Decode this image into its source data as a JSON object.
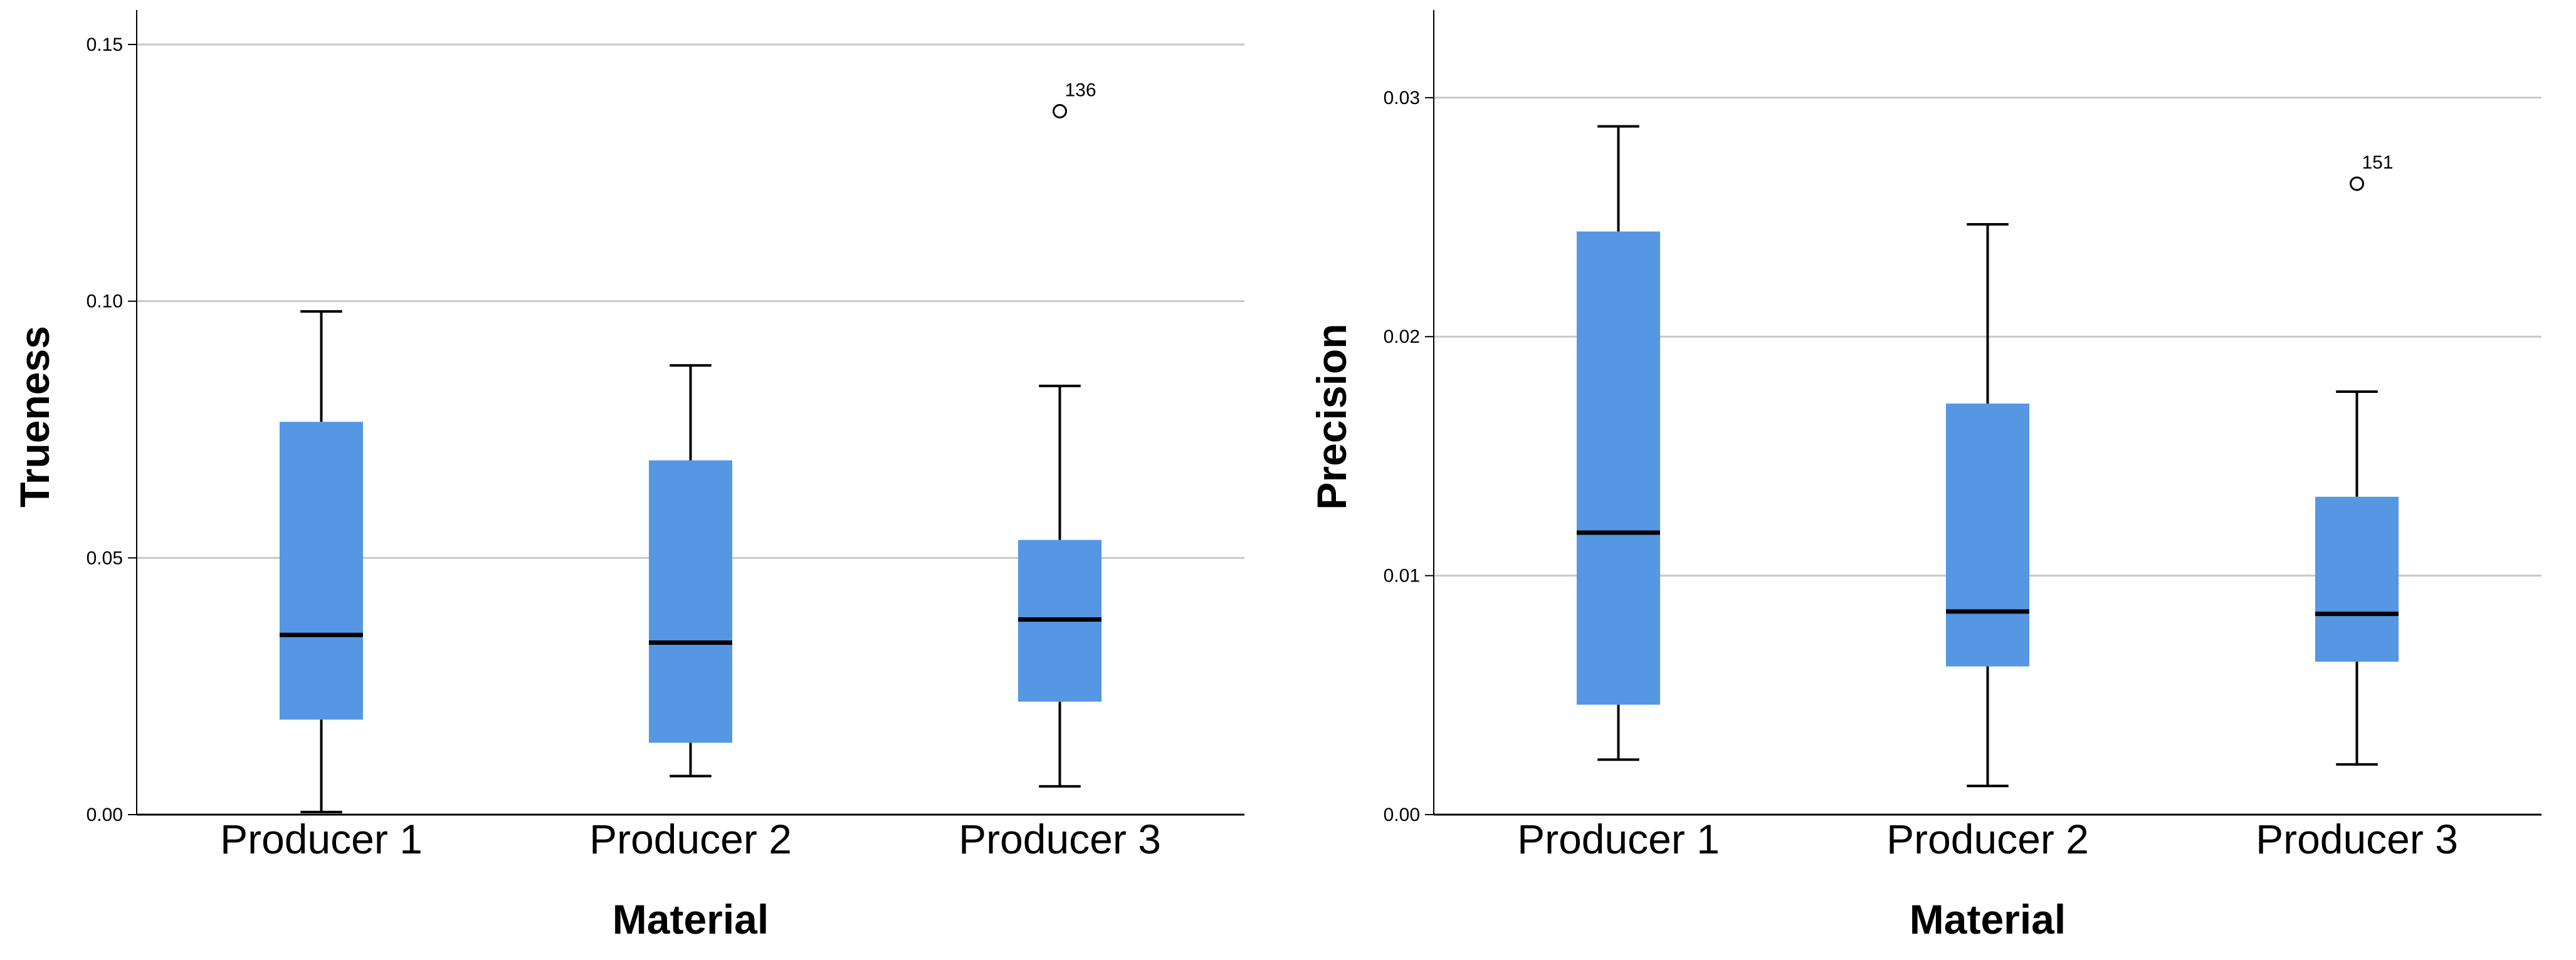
{
  "colors": {
    "box_fill": "#5597E3",
    "median": "#000000",
    "whisker": "#000000",
    "grid": "#C8C8C8",
    "axis": "#000000"
  },
  "chart_data": [
    {
      "type": "box",
      "title": "",
      "xlabel": "Material",
      "ylabel": "Trueness",
      "ylim": [
        0,
        0.155
      ],
      "yticks": [
        0.0,
        0.05,
        0.1,
        0.15
      ],
      "ytick_labels": [
        "0.00",
        "0.05",
        "0.10",
        "0.15"
      ],
      "grid": true,
      "categories": [
        "Producer 1",
        "Producer 2",
        "Producer 3"
      ],
      "boxes": [
        {
          "whisker_low": 0.0005,
          "q1": 0.0185,
          "median": 0.035,
          "q3": 0.0765,
          "whisker_high": 0.098,
          "outliers": []
        },
        {
          "whisker_low": 0.0075,
          "q1": 0.014,
          "median": 0.0335,
          "q3": 0.069,
          "whisker_high": 0.0875,
          "outliers": []
        },
        {
          "whisker_low": 0.0055,
          "q1": 0.022,
          "median": 0.038,
          "q3": 0.0535,
          "whisker_high": 0.0835,
          "outliers": [
            {
              "value": 0.137,
              "label": "136"
            }
          ]
        }
      ]
    },
    {
      "type": "box",
      "title": "",
      "xlabel": "Material",
      "ylabel": "Precision",
      "ylim": [
        0,
        0.0333
      ],
      "yticks": [
        0.0,
        0.01,
        0.02,
        0.03
      ],
      "ytick_labels": [
        "0.00",
        "0.01",
        "0.02",
        "0.03"
      ],
      "grid": true,
      "categories": [
        "Producer 1",
        "Producer 2",
        "Producer 3"
      ],
      "boxes": [
        {
          "whisker_low": 0.0023,
          "q1": 0.0046,
          "median": 0.0118,
          "q3": 0.0244,
          "whisker_high": 0.0288,
          "outliers": []
        },
        {
          "whisker_low": 0.0012,
          "q1": 0.0062,
          "median": 0.0085,
          "q3": 0.0172,
          "whisker_high": 0.0247,
          "outliers": []
        },
        {
          "whisker_low": 0.0021,
          "q1": 0.0064,
          "median": 0.0084,
          "q3": 0.0133,
          "whisker_high": 0.0177,
          "outliers": [
            {
              "value": 0.0264,
              "label": "151"
            }
          ]
        }
      ]
    }
  ]
}
